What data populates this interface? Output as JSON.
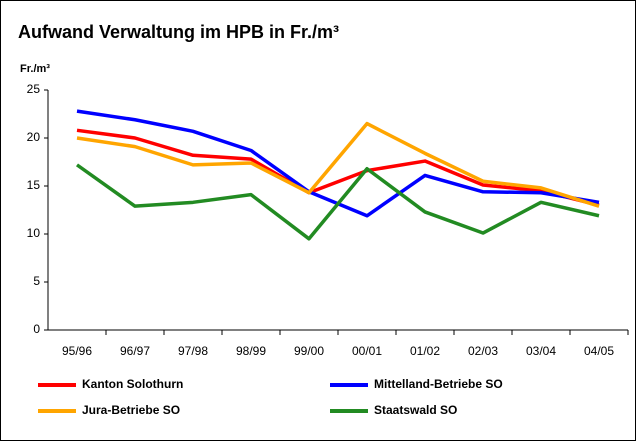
{
  "chart_data": {
    "type": "line",
    "title": "Aufwand Verwaltung im HPB in Fr./m³",
    "y_label": "Fr./m³",
    "categories": [
      "95/96",
      "96/97",
      "97/98",
      "98/99",
      "99/00",
      "00/01",
      "01/02",
      "02/03",
      "03/04",
      "04/05"
    ],
    "series": [
      {
        "name": "Kanton Solothurn",
        "color": "#ff0000",
        "values": [
          20.8,
          20.0,
          18.2,
          17.8,
          14.3,
          16.6,
          17.6,
          15.1,
          14.5,
          13.0
        ]
      },
      {
        "name": "Mittelland-Betriebe SO",
        "color": "#0000ff",
        "values": [
          22.8,
          21.9,
          20.7,
          18.7,
          14.4,
          11.9,
          16.1,
          14.4,
          14.3,
          13.3
        ]
      },
      {
        "name": "Jura-Betriebe SO",
        "color": "#ffa500",
        "values": [
          20.0,
          19.1,
          17.2,
          17.4,
          14.3,
          21.5,
          18.4,
          15.5,
          14.8,
          12.9
        ]
      },
      {
        "name": "Staatswald SO",
        "color": "#228b22",
        "values": [
          17.2,
          12.9,
          13.3,
          14.1,
          9.5,
          16.8,
          12.3,
          10.1,
          13.3,
          11.9
        ]
      }
    ],
    "ylim": [
      0,
      25
    ],
    "yticks": [
      0,
      5,
      10,
      15,
      20,
      25
    ],
    "grid": false
  }
}
